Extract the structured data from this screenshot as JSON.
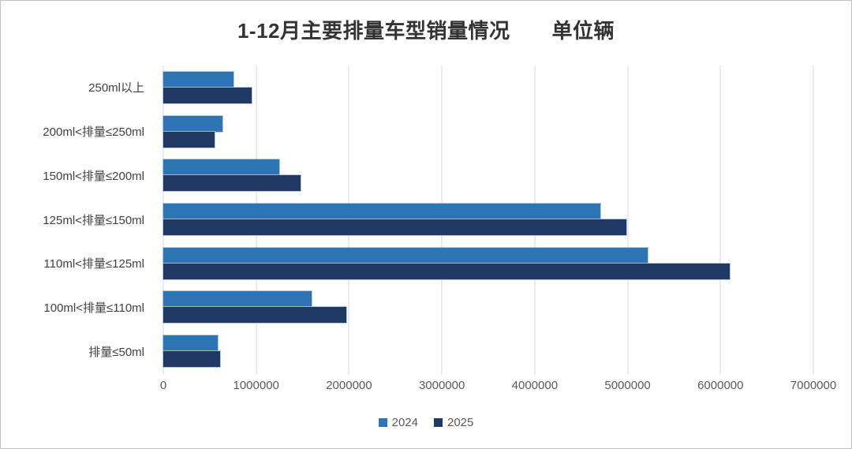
{
  "window": {
    "background": "#ffffff",
    "border_color": "#c0c0c0"
  },
  "chart": {
    "title": "1-12月主要排量车型销量情况　　单位辆"
  },
  "chart_data": {
    "type": "bar",
    "orientation": "horizontal",
    "title": "1-12月主要排量车型销量情况　　单位辆",
    "categories": [
      "250ml以上",
      "200ml<排量≤250ml",
      "150ml<排量≤200ml",
      "125ml<排量≤150ml",
      "110ml<排量≤125ml",
      "100ml<排量≤110ml",
      "排量≤50ml"
    ],
    "series": [
      {
        "name": "2024",
        "color": "#2E75B6",
        "values": [
          760000,
          640000,
          1250000,
          4710000,
          5220000,
          1600000,
          590000
        ]
      },
      {
        "name": "2025",
        "color": "#203864",
        "values": [
          950000,
          550000,
          1480000,
          4990000,
          6100000,
          1970000,
          610000
        ]
      }
    ],
    "xlim": [
      0,
      7000000
    ],
    "x_ticks": [
      0,
      1000000,
      2000000,
      3000000,
      4000000,
      5000000,
      6000000,
      7000000
    ],
    "x_tick_labels": [
      "0",
      "1000000",
      "2000000",
      "3000000",
      "4000000",
      "5000000",
      "6000000",
      "7000000"
    ],
    "grid": true,
    "gridline_color": "#d9d9d9",
    "axis_text_color": "#595959",
    "category_text_color": "#404040",
    "legend_position": "bottom"
  }
}
